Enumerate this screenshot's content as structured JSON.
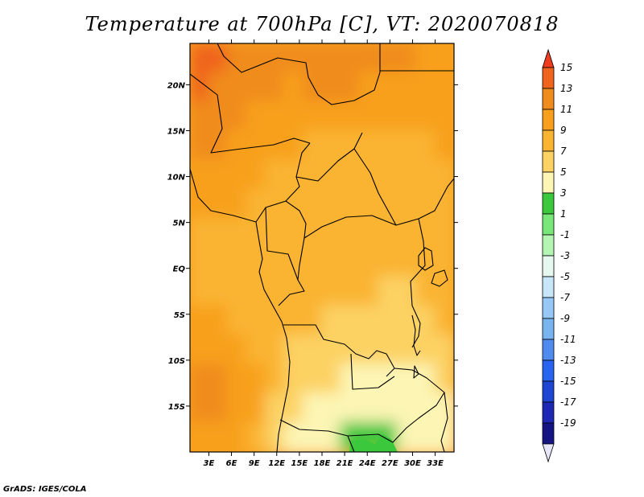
{
  "chart_data": {
    "type": "heatmap",
    "title": "Temperature at 700hPa [C], VT: 2020070818",
    "variable": "Temperature at 700hPa",
    "units": "C",
    "valid_time": "2020070818",
    "x_axis": {
      "ticks": [
        3,
        6,
        9,
        12,
        15,
        18,
        21,
        24,
        27,
        30,
        33
      ],
      "tick_labels": [
        "3E",
        "6E",
        "9E",
        "12E",
        "15E",
        "18E",
        "21E",
        "24E",
        "27E",
        "30E",
        "33E"
      ],
      "range": [
        0.5,
        35.5
      ]
    },
    "y_axis": {
      "ticks": [
        20,
        15,
        10,
        5,
        0,
        -5,
        -10,
        -15
      ],
      "tick_labels": [
        "20N",
        "15N",
        "10N",
        "5N",
        "EQ",
        "5S",
        "10S",
        "15S"
      ],
      "range": [
        -20,
        24.5
      ]
    },
    "colorbar": {
      "labels": [
        "15",
        "13",
        "11",
        "9",
        "7",
        "5",
        "3",
        "1",
        "-1",
        "-3",
        "-5",
        "-7",
        "-9",
        "-11",
        "-13",
        "-15",
        "-17",
        "-19"
      ],
      "colors": [
        "#f03c1e",
        "#f0641e",
        "#f08c1e",
        "#f8a01e",
        "#fab432",
        "#fcd264",
        "#fcf5b4",
        "#3cc83c",
        "#78e678",
        "#b4f5b4",
        "#e6f8f0",
        "#c8e6fa",
        "#96c8f5",
        "#78b4f0",
        "#508cf0",
        "#2864f0",
        "#1e46d2",
        "#1e28b4",
        "#141482",
        "#e6e6f8"
      ]
    },
    "field_values": [
      [
        14,
        14,
        13,
        13,
        12,
        12,
        13,
        13,
        13,
        13,
        12,
        12,
        11,
        11
      ],
      [
        14,
        13,
        12,
        12,
        12,
        11,
        12,
        12,
        12,
        11,
        11,
        11,
        11,
        11
      ],
      [
        13,
        12,
        12,
        11,
        11,
        10,
        11,
        11,
        10,
        10,
        10,
        10,
        10,
        11
      ],
      [
        12,
        12,
        11,
        11,
        10,
        10,
        9,
        9,
        9,
        9,
        9,
        9,
        9,
        10
      ],
      [
        11,
        11,
        10,
        10,
        9,
        9,
        9,
        9,
        9,
        9,
        9,
        9,
        9,
        9
      ],
      [
        10,
        10,
        10,
        9,
        9,
        9,
        8,
        8,
        8,
        8,
        9,
        9,
        9,
        9
      ],
      [
        9,
        9,
        9,
        9,
        8,
        8,
        8,
        8,
        8,
        8,
        8,
        8,
        9,
        9
      ],
      [
        9,
        9,
        9,
        8,
        8,
        8,
        8,
        8,
        8,
        8,
        8,
        8,
        8,
        9
      ],
      [
        9,
        9,
        9,
        8,
        8,
        8,
        8,
        8,
        8,
        8,
        7,
        7,
        8,
        8
      ],
      [
        10,
        10,
        9,
        9,
        8,
        8,
        8,
        7,
        7,
        7,
        7,
        7,
        7,
        8
      ],
      [
        11,
        11,
        10,
        9,
        8,
        7,
        7,
        7,
        6,
        6,
        6,
        6,
        6,
        7
      ],
      [
        12,
        12,
        11,
        10,
        8,
        7,
        6,
        6,
        5,
        5,
        5,
        5,
        5,
        6
      ],
      [
        12,
        12,
        11,
        10,
        7,
        6,
        5,
        5,
        4,
        4,
        4,
        4,
        4,
        5
      ],
      [
        11,
        11,
        10,
        9,
        6,
        5,
        4,
        4,
        2,
        2,
        3,
        4,
        4,
        4
      ]
    ],
    "credit": "GrADS: IGES/COLA"
  }
}
